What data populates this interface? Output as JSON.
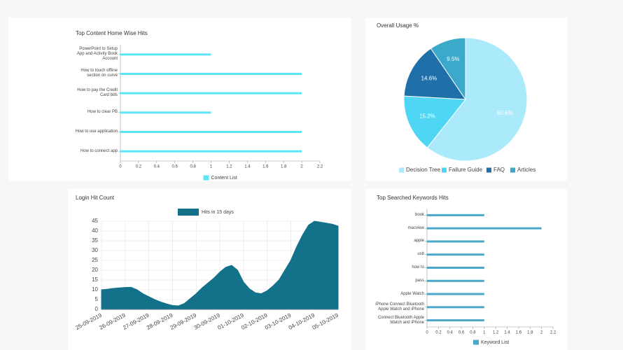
{
  "chart_data": [
    {
      "type": "hbar",
      "title": "Top Content Home Wise Hits",
      "categories": [
        "PowerPoint to Setup App and Activity Book Account",
        "How to touch offline section on curve",
        "How to pay the Credit Card bills",
        "How to clear PB",
        "How to use application",
        "How to connect app"
      ],
      "series": [
        {
          "name": "Content List",
          "color": "#5ce6f5",
          "values": [
            1,
            2,
            2,
            1,
            2,
            2
          ]
        }
      ],
      "xlim": [
        0,
        2.2
      ],
      "xticks": [
        0,
        0.2,
        0.4,
        0.6,
        0.8,
        1,
        1.2,
        1.4,
        1.6,
        1.8,
        2,
        2.2
      ]
    },
    {
      "type": "pie",
      "title": "Overall Usage %",
      "categories": [
        "Decision Tree",
        "Failure Guide",
        "FAQ",
        "Articles"
      ],
      "values": [
        60.6,
        15.2,
        14.6,
        9.5
      ],
      "value_labels": [
        "60.6%",
        "15.2%",
        "14.6%",
        "9.5%"
      ],
      "colors": [
        "#aaeafb",
        "#4fd6f5",
        "#1f6fa8",
        "#3ba9c9"
      ]
    },
    {
      "type": "area",
      "title": "Login Hit Count",
      "categories": [
        "25-09-2019",
        null,
        null,
        null,
        "26-09-2019",
        null,
        null,
        null,
        "27-09-2019",
        null,
        null,
        null,
        "28-09-2019",
        null,
        null,
        null,
        "29-09-2019",
        null,
        null,
        null,
        "30-09-2019",
        null,
        null,
        null,
        "01-10-2019",
        null,
        null,
        null,
        "02-10-2019",
        null,
        null,
        null,
        "03-10-2019",
        null,
        null,
        null,
        "04-10-2019",
        null,
        null,
        null,
        "05-10-2019"
      ],
      "series": [
        {
          "name": "Hits in 15 days",
          "color": "#13718a",
          "values": [
            10,
            10.3,
            10.7,
            11,
            11.2,
            11.3,
            10,
            8,
            6.5,
            5,
            3.8,
            2.8,
            2,
            1.8,
            3,
            5.5,
            8,
            11,
            13.5,
            16,
            19,
            21.5,
            22.5,
            20,
            14,
            10.5,
            8.5,
            8,
            9.5,
            12,
            15,
            20,
            25,
            32,
            38,
            43,
            45,
            44.5,
            44,
            43.5,
            42.5
          ]
        }
      ],
      "ylim": [
        0,
        45
      ],
      "yticks": [
        0,
        5,
        10,
        15,
        20,
        25,
        30,
        35,
        40,
        45
      ],
      "grid": true
    },
    {
      "type": "hbar",
      "title": "Top Searched Keywords Hits",
      "categories": [
        "book",
        "macview",
        "apple",
        "usb",
        "how to",
        "pass",
        "Apple Watch",
        "iPhone Connect Bluetooth Apple Watch and iPhone",
        "Connect Bluetooth Apple Watch and iPhone"
      ],
      "series": [
        {
          "name": "Keyword List",
          "color": "#4aa8c8",
          "values": [
            1,
            2,
            1,
            1,
            1,
            1,
            1,
            1,
            1
          ]
        }
      ],
      "xlim": [
        0,
        2.2
      ],
      "xticks": [
        0,
        0.2,
        0.4,
        0.6,
        0.8,
        1,
        1.2,
        1.4,
        1.6,
        1.8,
        2,
        2.2
      ]
    }
  ]
}
